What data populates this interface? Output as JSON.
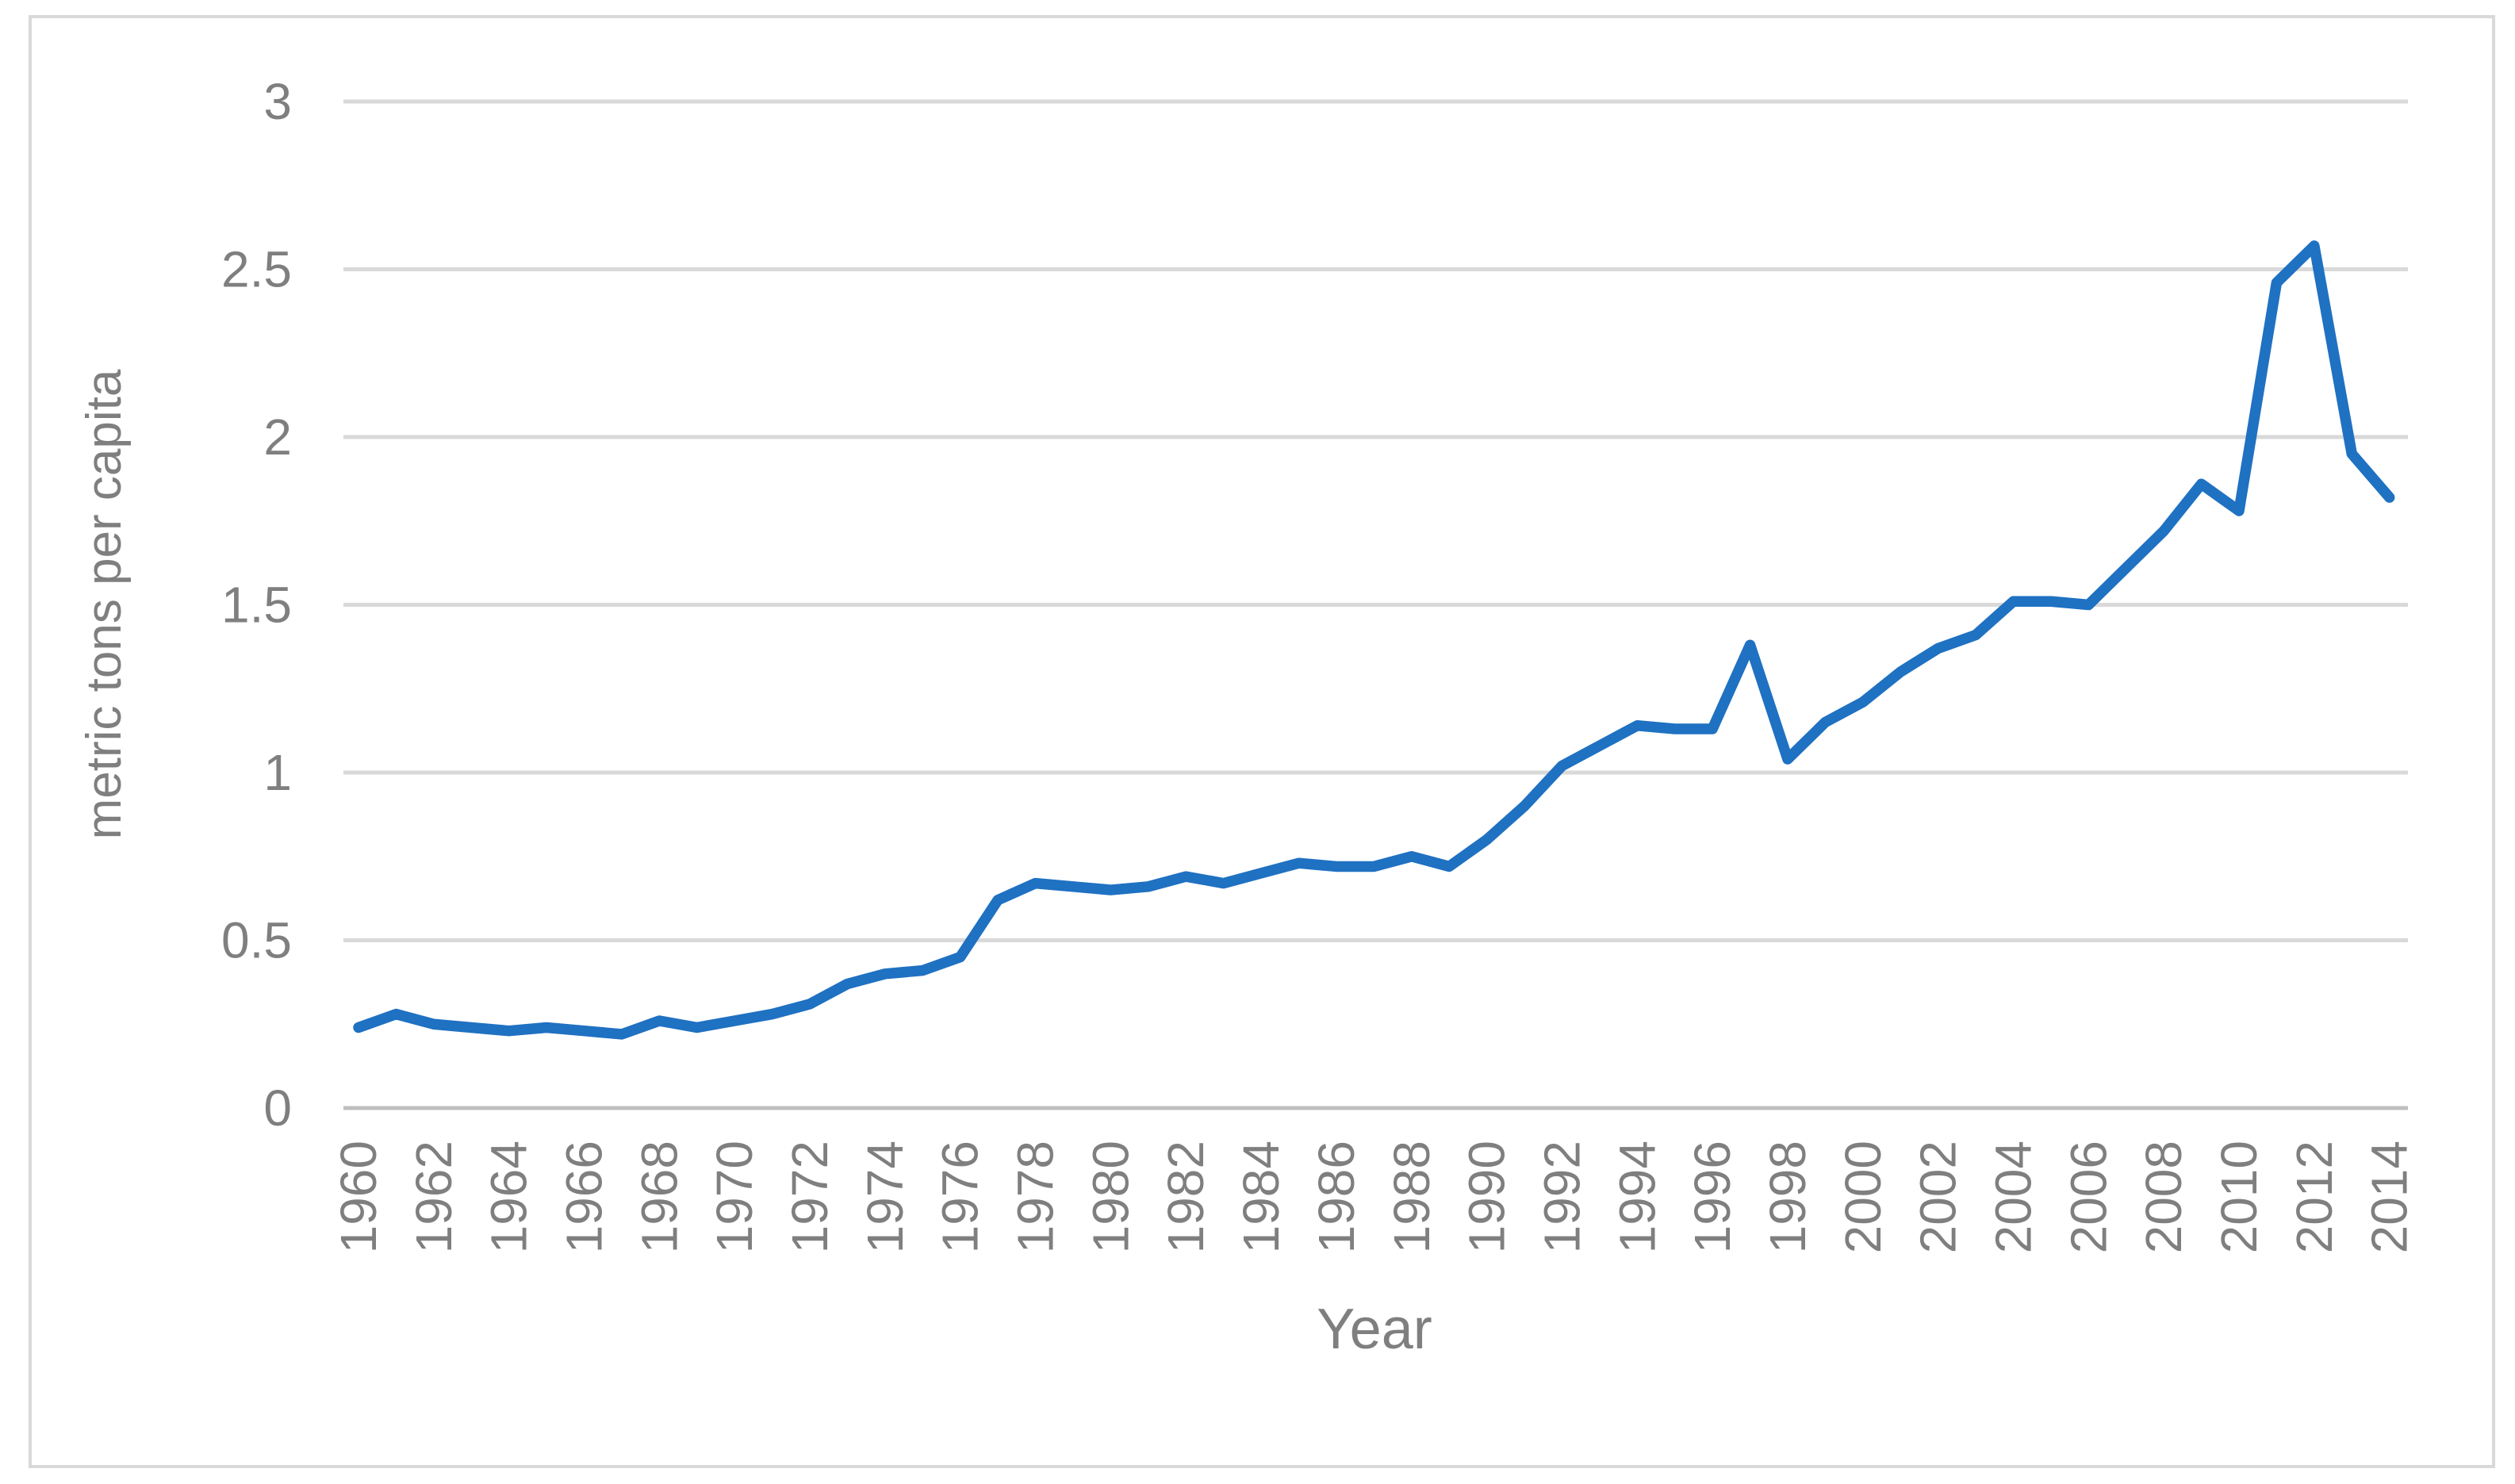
{
  "chart_data": {
    "type": "line",
    "title": "",
    "xlabel": "Year",
    "ylabel": "metric tons per capita",
    "x": [
      1960,
      1961,
      1962,
      1963,
      1964,
      1965,
      1966,
      1967,
      1968,
      1969,
      1970,
      1971,
      1972,
      1973,
      1974,
      1975,
      1976,
      1977,
      1978,
      1979,
      1980,
      1981,
      1982,
      1983,
      1984,
      1985,
      1986,
      1987,
      1988,
      1989,
      1990,
      1991,
      1992,
      1993,
      1994,
      1995,
      1996,
      1997,
      1998,
      1999,
      2000,
      2001,
      2002,
      2003,
      2004,
      2005,
      2006,
      2007,
      2008,
      2009,
      2010,
      2011,
      2012,
      2013,
      2014
    ],
    "values": [
      0.24,
      0.28,
      0.25,
      0.24,
      0.23,
      0.24,
      0.23,
      0.22,
      0.26,
      0.24,
      0.26,
      0.28,
      0.31,
      0.37,
      0.4,
      0.41,
      0.45,
      0.62,
      0.67,
      0.66,
      0.65,
      0.66,
      0.69,
      0.67,
      0.7,
      0.73,
      0.72,
      0.72,
      0.75,
      0.72,
      0.8,
      0.9,
      1.02,
      1.08,
      1.14,
      1.13,
      1.13,
      1.38,
      1.04,
      1.15,
      1.21,
      1.3,
      1.37,
      1.41,
      1.51,
      1.51,
      1.5,
      1.61,
      1.72,
      1.86,
      1.78,
      2.46,
      2.57,
      1.95,
      1.82
    ],
    "x_tick_labels": [
      "1960",
      "1962",
      "1964",
      "1966",
      "1968",
      "1970",
      "1972",
      "1974",
      "1976",
      "1978",
      "1980",
      "1982",
      "1984",
      "1986",
      "1988",
      "1990",
      "1992",
      "1994",
      "1996",
      "1998",
      "2000",
      "2002",
      "2004",
      "2006",
      "2008",
      "2010",
      "2012",
      "2014"
    ],
    "y_ticks": [
      0,
      0.5,
      1,
      1.5,
      2,
      2.5,
      3
    ],
    "y_tick_labels": [
      "0",
      "0.5",
      "1",
      "1.5",
      "2",
      "2.5",
      "3"
    ],
    "ylim": [
      0,
      3
    ],
    "xlim": [
      1960,
      2014
    ],
    "grid": "horizontal",
    "legend": "none",
    "colors": {
      "line": "#1f71c2",
      "text": "#7f7f7f",
      "grid": "#d9d9d9",
      "axis": "#bfbfbf",
      "frame": "#d9d9d9"
    }
  }
}
